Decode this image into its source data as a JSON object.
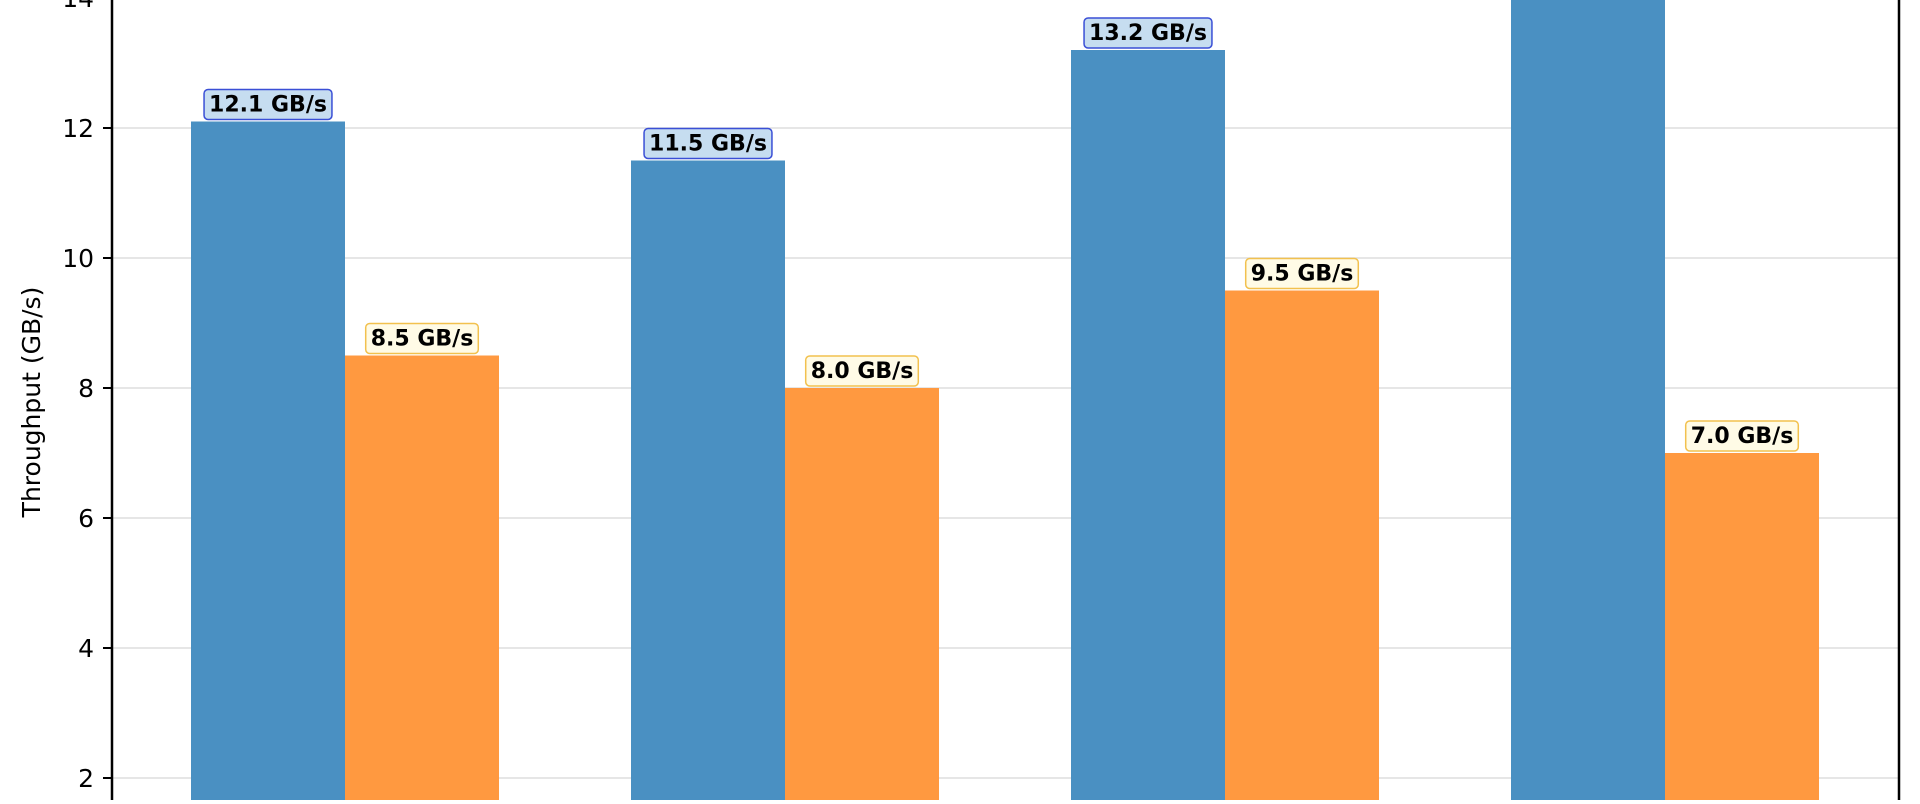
{
  "chart_data": {
    "type": "bar",
    "title": "",
    "xlabel": "",
    "ylabel": "Throughput (GB/s)",
    "ylim_visible": [
      1.7,
      14.1
    ],
    "yticks": [
      2,
      4,
      6,
      8,
      10,
      12,
      14
    ],
    "grid": "horizontal",
    "categories": [
      "",
      "",
      "",
      ""
    ],
    "series": [
      {
        "color": "#4a90c2",
        "label_box_fill": "#c6ddf0",
        "label_box_stroke": "#3a4fd6",
        "values": [
          12.1,
          11.5,
          13.2,
          14.5
        ],
        "labels": [
          "12.1 GB/s",
          "11.5 GB/s",
          "13.2 GB/s",
          ""
        ]
      },
      {
        "color": "#ff9940",
        "label_box_fill": "#fffbe6",
        "label_box_stroke": "#f2c14e",
        "values": [
          8.5,
          8.0,
          9.5,
          7.0
        ],
        "labels": [
          "8.5 GB/s",
          "8.0 GB/s",
          "9.5 GB/s",
          "7.0 GB/s"
        ]
      }
    ]
  }
}
